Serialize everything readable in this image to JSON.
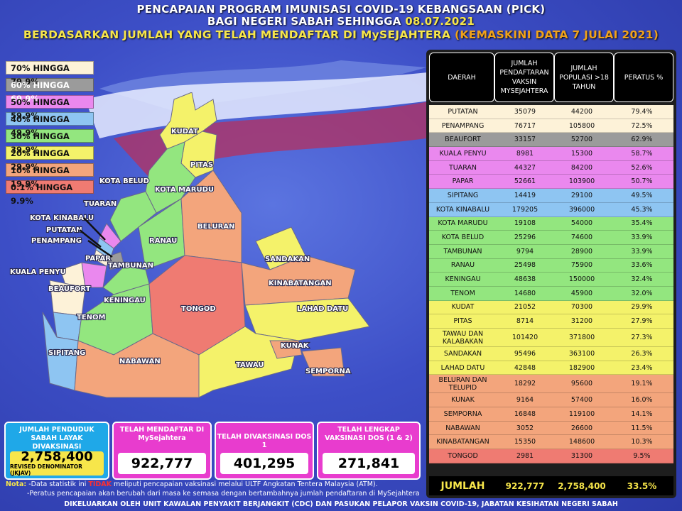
{
  "header": {
    "line1": "PENCAPAIAN PROGRAM IMUNISASI COVID-19 KEBANGSAAN (PICK)",
    "line2_prefix": "BAGI NEGERI SABAH SEHINGGA ",
    "line2_date": "08.07.2021",
    "line3_prefix": "BERDASARKAN JUMLAH YANG TELAH MENDAFTAR DI MySEJAHTERA ",
    "line3_note": "(KEMASKINI DATA  7 JULAI 2021)"
  },
  "legend": [
    {
      "label": "70% HINGGA 79.9%",
      "color": "#fdf2d8"
    },
    {
      "label": "60% HINGGA 69.9%",
      "color": "#9b9b9b"
    },
    {
      "label": "50% HINGGA 59.9%",
      "color": "#ea88ee"
    },
    {
      "label": "40% HINGGA 49.9%",
      "color": "#8ec5f2"
    },
    {
      "label": "30% HINGGA 39.9%",
      "color": "#93e67f"
    },
    {
      "label": "20% HINGGA 29.9%",
      "color": "#f4f26a"
    },
    {
      "label": "10% HINGGA 19.9%",
      "color": "#f3a57c"
    },
    {
      "label": "0.1% HINGGA 9.9%",
      "color": "#ef7b72"
    }
  ],
  "map_labels": {
    "kudat": "KUDAT",
    "pitas": "PITAS",
    "kota_belud": "KOTA BELUD",
    "kota_marudu": "KOTA MARUDU",
    "tuaran": "TUARAN",
    "kota_kinabalu": "KOTA KINABALU",
    "putatan": "PUTATAN",
    "penampang": "PENAMPANG",
    "papar": "PAPAR",
    "kuala_penyu": "KUALA PENYU",
    "beaufort": "BEAUFORT",
    "tenom": "TENOM",
    "sipitang": "SIPITANG",
    "keningau": "KENINGAU",
    "tambunan": "TAMBUNAN",
    "ranau": "RANAU",
    "beluran": "BELURAN",
    "sandakan": "SANDAKAN",
    "kinabatangan": "KINABATANGAN",
    "tongod": "TONGOD",
    "lahad_datu": "LAHAD DATU",
    "nabawan": "NABAWAN",
    "kunak": "KUNAK",
    "tawau": "TAWAU",
    "semporna": "SEMPORNA"
  },
  "table": {
    "headers": [
      "DAERAH",
      "JUMLAH PENDAFTARAN VAKSIN MYSEJAHTERA",
      "JUMLAH POPULASI >18 TAHUN",
      "PERATUS %"
    ],
    "rows": [
      {
        "daerah": "PUTATAN",
        "daftar": "35079",
        "populasi": "44200",
        "peratus": "79.4%",
        "color": "#fdf2d8"
      },
      {
        "daerah": "PENAMPANG",
        "daftar": "76717",
        "populasi": "105800",
        "peratus": "72.5%",
        "color": "#fdf2d8"
      },
      {
        "daerah": "BEAUFORT",
        "daftar": "33157",
        "populasi": "52700",
        "peratus": "62.9%",
        "color": "#9b9b9b"
      },
      {
        "daerah": "KUALA PENYU",
        "daftar": "8981",
        "populasi": "15300",
        "peratus": "58.7%",
        "color": "#ea88ee"
      },
      {
        "daerah": "TUARAN",
        "daftar": "44327",
        "populasi": "84200",
        "peratus": "52.6%",
        "color": "#ea88ee"
      },
      {
        "daerah": "PAPAR",
        "daftar": "52661",
        "populasi": "103900",
        "peratus": "50.7%",
        "color": "#ea88ee"
      },
      {
        "daerah": "SIPITANG",
        "daftar": "14419",
        "populasi": "29100",
        "peratus": "49.5%",
        "color": "#8ec5f2"
      },
      {
        "daerah": "KOTA KINABALU",
        "daftar": "179205",
        "populasi": "396000",
        "peratus": "45.3%",
        "color": "#8ec5f2"
      },
      {
        "daerah": "KOTA MARUDU",
        "daftar": "19108",
        "populasi": "54000",
        "peratus": "35.4%",
        "color": "#93e67f"
      },
      {
        "daerah": "KOTA BELUD",
        "daftar": "25296",
        "populasi": "74600",
        "peratus": "33.9%",
        "color": "#93e67f"
      },
      {
        "daerah": "TAMBUNAN",
        "daftar": "9794",
        "populasi": "28900",
        "peratus": "33.9%",
        "color": "#93e67f"
      },
      {
        "daerah": "RANAU",
        "daftar": "25498",
        "populasi": "75900",
        "peratus": "33.6%",
        "color": "#93e67f"
      },
      {
        "daerah": "KENINGAU",
        "daftar": "48638",
        "populasi": "150000",
        "peratus": "32.4%",
        "color": "#93e67f"
      },
      {
        "daerah": "TENOM",
        "daftar": "14680",
        "populasi": "45900",
        "peratus": "32.0%",
        "color": "#93e67f"
      },
      {
        "daerah": "KUDAT",
        "daftar": "21052",
        "populasi": "70300",
        "peratus": "29.9%",
        "color": "#f4f26a"
      },
      {
        "daerah": "PITAS",
        "daftar": "8714",
        "populasi": "31200",
        "peratus": "27.9%",
        "color": "#f4f26a"
      },
      {
        "daerah": "TAWAU DAN KALABAKAN",
        "daftar": "101420",
        "populasi": "371800",
        "peratus": "27.3%",
        "color": "#f4f26a",
        "tall": true
      },
      {
        "daerah": "SANDAKAN",
        "daftar": "95496",
        "populasi": "363100",
        "peratus": "26.3%",
        "color": "#f4f26a"
      },
      {
        "daerah": "LAHAD DATU",
        "daftar": "42848",
        "populasi": "182900",
        "peratus": "23.4%",
        "color": "#f4f26a"
      },
      {
        "daerah": "BELURAN DAN TELUPID",
        "daftar": "18292",
        "populasi": "95600",
        "peratus": "19.1%",
        "color": "#f3a57c",
        "tall": true
      },
      {
        "daerah": "KUNAK",
        "daftar": "9164",
        "populasi": "57400",
        "peratus": "16.0%",
        "color": "#f3a57c"
      },
      {
        "daerah": "SEMPORNA",
        "daftar": "16848",
        "populasi": "119100",
        "peratus": "14.1%",
        "color": "#f3a57c"
      },
      {
        "daerah": "NABAWAN",
        "daftar": "3052",
        "populasi": "26600",
        "peratus": "11.5%",
        "color": "#f3a57c"
      },
      {
        "daerah": "KINABATANGAN",
        "daftar": "15350",
        "populasi": "148600",
        "peratus": "10.3%",
        "color": "#f3a57c"
      },
      {
        "daerah": "TONGOD",
        "daftar": "2981",
        "populasi": "31300",
        "peratus": "9.5%",
        "color": "#ef7b72"
      }
    ],
    "total": {
      "label": "JUMLAH",
      "daftar": "922,777",
      "populasi": "2,758,400",
      "peratus": "33.5%"
    }
  },
  "summary": {
    "b1_label": "JUMLAH PENDUDUK SABAH LAYAK DIVAKSINASI",
    "b1_value": "2,758,400",
    "b1_sub": "REVISED DENOMINATOR  (JKJAV)",
    "b2_label": "TELAH MENDAFTAR DI MySejahtera",
    "b2_value": "922,777",
    "b3_label": "TELAH DIVAKSINASI DOS 1",
    "b3_value": "401,295",
    "b4_label": "TELAH LENGKAP VAKSINASI DOS (1 & 2)",
    "b4_value": "271,841"
  },
  "notes": {
    "prefix": "Nota:",
    "n1a": " -Data statistik ini ",
    "n1_red": "TIDAK",
    "n1b": " meliputi pencapaian vaksinasi melalui ULTF Angkatan Tentera Malaysia (ATM).",
    "n2": "-Peratus pencapaian akan berubah dari masa ke semasa dengan bertambahnya jumlah pendaftaran di MySejahtera"
  },
  "footer": "DIKELUARKAN OLEH UNIT KAWALAN PENYAKIT BERJANGKIT (CDC) DAN PASUKAN PELAPOR VAKSIN COVID-19, JABATAN KESIHATAN NEGERI SABAH"
}
